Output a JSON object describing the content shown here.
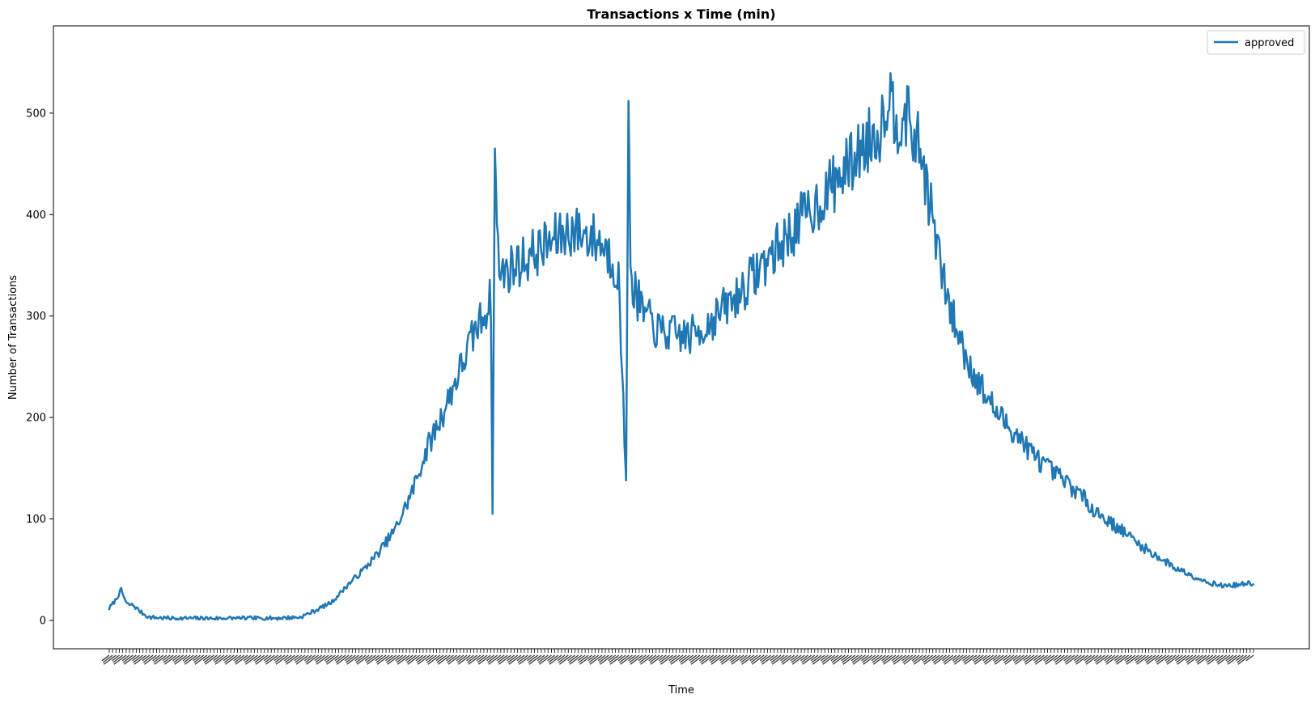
{
  "chart_data": {
    "type": "line",
    "title": "Transactions x Time (min)",
    "xlabel": "Time",
    "ylabel": "Number of Transactions",
    "ylim": [
      -28,
      586
    ],
    "yticks": [
      0,
      100,
      200,
      300,
      400,
      500
    ],
    "x_tick_count": 340,
    "grid": false,
    "legend_position": "top-right",
    "series": [
      {
        "name": "approved",
        "color": "#1f77b4",
        "x_range": [
          0,
          1439
        ],
        "points": [
          [
            0,
            12
          ],
          [
            8,
            20
          ],
          [
            15,
            30
          ],
          [
            22,
            16
          ],
          [
            30,
            15
          ],
          [
            40,
            8
          ],
          [
            50,
            3
          ],
          [
            80,
            2
          ],
          [
            120,
            2
          ],
          [
            160,
            2
          ],
          [
            200,
            2
          ],
          [
            240,
            3
          ],
          [
            260,
            10
          ],
          [
            280,
            18
          ],
          [
            300,
            35
          ],
          [
            320,
            50
          ],
          [
            340,
            68
          ],
          [
            360,
            90
          ],
          [
            380,
            125
          ],
          [
            400,
            170
          ],
          [
            420,
            205
          ],
          [
            440,
            245
          ],
          [
            460,
            285
          ],
          [
            470,
            300
          ],
          [
            480,
            318
          ],
          [
            482,
            105
          ],
          [
            485,
            465
          ],
          [
            490,
            340
          ],
          [
            500,
            345
          ],
          [
            520,
            355
          ],
          [
            540,
            365
          ],
          [
            560,
            375
          ],
          [
            580,
            385
          ],
          [
            600,
            380
          ],
          [
            620,
            372
          ],
          [
            640,
            345
          ],
          [
            650,
            138
          ],
          [
            653,
            512
          ],
          [
            656,
            335
          ],
          [
            670,
            305
          ],
          [
            690,
            285
          ],
          [
            710,
            282
          ],
          [
            730,
            280
          ],
          [
            750,
            290
          ],
          [
            770,
            305
          ],
          [
            790,
            320
          ],
          [
            810,
            340
          ],
          [
            830,
            358
          ],
          [
            850,
            375
          ],
          [
            870,
            395
          ],
          [
            890,
            410
          ],
          [
            910,
            430
          ],
          [
            930,
            448
          ],
          [
            950,
            470
          ],
          [
            970,
            485
          ],
          [
            980,
            525
          ],
          [
            990,
            490
          ],
          [
            1000,
            505
          ],
          [
            1010,
            478
          ],
          [
            1020,
            465
          ],
          [
            1030,
            420
          ],
          [
            1040,
            375
          ],
          [
            1050,
            330
          ],
          [
            1060,
            300
          ],
          [
            1080,
            255
          ],
          [
            1100,
            225
          ],
          [
            1120,
            200
          ],
          [
            1140,
            185
          ],
          [
            1160,
            165
          ],
          [
            1180,
            150
          ],
          [
            1200,
            138
          ],
          [
            1220,
            125
          ],
          [
            1240,
            108
          ],
          [
            1260,
            96
          ],
          [
            1280,
            85
          ],
          [
            1300,
            72
          ],
          [
            1320,
            62
          ],
          [
            1340,
            52
          ],
          [
            1360,
            45
          ],
          [
            1380,
            38
          ],
          [
            1400,
            34
          ],
          [
            1420,
            35
          ],
          [
            1439,
            37
          ]
        ],
        "noise_amplitude": 0.07,
        "seed": 7
      }
    ]
  }
}
